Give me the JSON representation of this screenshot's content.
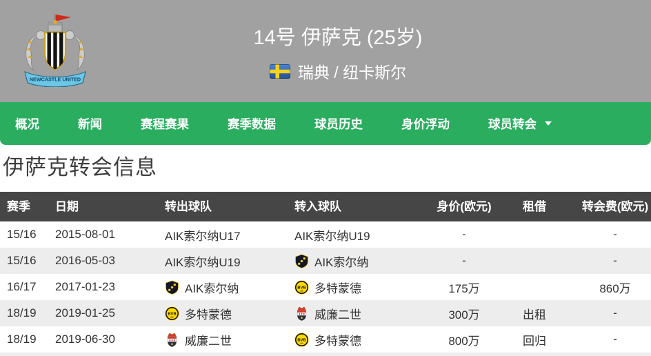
{
  "header": {
    "title": "14号 伊萨克 (25岁)",
    "nationality_club": "瑞典 / 纽卡斯尔",
    "crest_banner_text": "NEWCASTLE UNITED",
    "flag": "sweden-flag"
  },
  "nav": {
    "items": [
      {
        "label": "概况",
        "name": "overview"
      },
      {
        "label": "新闻",
        "name": "news"
      },
      {
        "label": "赛程赛果",
        "name": "fixtures-results"
      },
      {
        "label": "赛季数据",
        "name": "season-stats"
      },
      {
        "label": "球员历史",
        "name": "player-history"
      },
      {
        "label": "身价浮动",
        "name": "market-value-trend"
      },
      {
        "label": "球员转会",
        "name": "transfers",
        "dropdown": true
      }
    ]
  },
  "page": {
    "title": "伊萨克转会信息"
  },
  "table": {
    "columns": [
      "赛季",
      "日期",
      "转出球队",
      "转入球队",
      "身价(欧元)",
      "租借",
      "转会费(欧元)"
    ],
    "rows": [
      {
        "season": "15/16",
        "date": "2015-08-01",
        "from": {
          "name": "AIK索尔纳U17",
          "logo": null
        },
        "to": {
          "name": "AIK索尔纳U19",
          "logo": null
        },
        "value": "-",
        "loan": "",
        "fee": "-"
      },
      {
        "season": "15/16",
        "date": "2016-05-03",
        "from": {
          "name": "AIK索尔纳U19",
          "logo": null
        },
        "to": {
          "name": "AIK索尔纳",
          "logo": "aik"
        },
        "value": "-",
        "loan": "",
        "fee": "-"
      },
      {
        "season": "16/17",
        "date": "2017-01-23",
        "from": {
          "name": "AIK索尔纳",
          "logo": "aik"
        },
        "to": {
          "name": "多特蒙德",
          "logo": "bvb"
        },
        "value": "175万",
        "loan": "",
        "fee": "860万"
      },
      {
        "season": "18/19",
        "date": "2019-01-25",
        "from": {
          "name": "多特蒙德",
          "logo": "bvb"
        },
        "to": {
          "name": "威廉二世",
          "logo": "willem"
        },
        "value": "300万",
        "loan": "出租",
        "fee": "-"
      },
      {
        "season": "18/19",
        "date": "2019-06-30",
        "from": {
          "name": "威廉二世",
          "logo": "willem"
        },
        "to": {
          "name": "多特蒙德",
          "logo": "bvb"
        },
        "value": "800万",
        "loan": "回归",
        "fee": "-"
      }
    ]
  },
  "colors": {
    "header_gray": "#a1a1a1",
    "nav_green": "#2aad5f",
    "table_header_bg": "#464646",
    "zebra_stripe": "#ededed"
  }
}
